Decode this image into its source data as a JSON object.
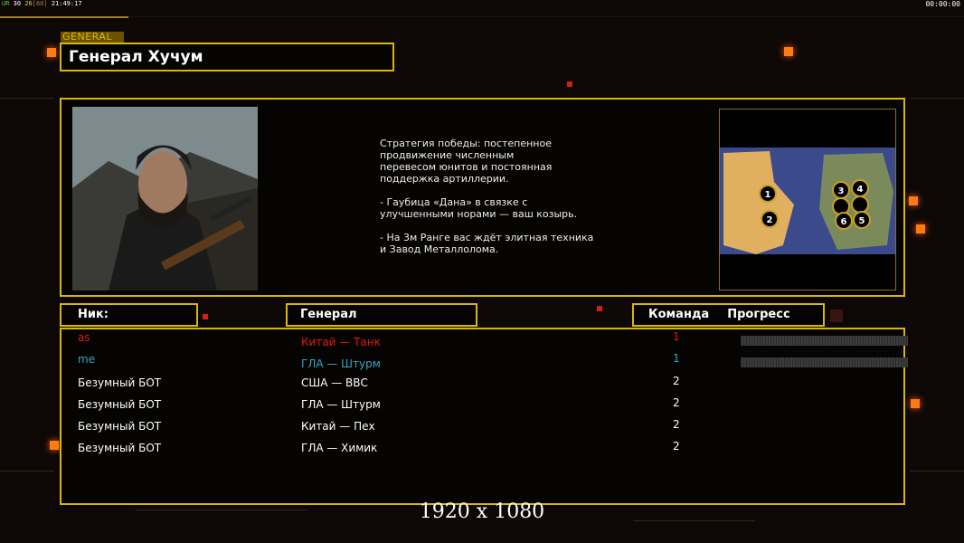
{
  "hud": {
    "fps_label": "UR",
    "values": [
      "30",
      "26",
      "[60]"
    ],
    "time": "21:49:17",
    "clock": "00:00:00"
  },
  "general": {
    "tag": "GENERAL",
    "title": "Генерал Хучум",
    "description": "Стратегия победы: постепенное\nпродвижение численным\nперевесом юнитов и постоянная\nподдержка артиллерии.\n\n- Гаубица «Дана» в связке с\nулучшенными норами — ваш козырь.\n\n- На 3м Ранге вас ждёт элитная техника\nи Завод Металлолома.",
    "map_slots": [
      "1",
      "2",
      "3",
      "4",
      "5",
      "6"
    ]
  },
  "headers": {
    "nick": "Ник:",
    "general": "Генерал",
    "team": "Команда",
    "progress": "Прогресс"
  },
  "players": [
    {
      "nick": "as",
      "general": "Китай — Танк",
      "team": "1",
      "color": "#e01a10",
      "progress": 0
    },
    {
      "nick": "me",
      "general": "ГЛА — Штурм",
      "team": "1",
      "color": "#30a8c8",
      "progress": 0
    },
    {
      "nick": "Безумный БОТ",
      "general": "США — ВВС",
      "team": "2",
      "color": "#ffffff"
    },
    {
      "nick": "Безумный БОТ",
      "general": "ГЛА — Штурм",
      "team": "2",
      "color": "#ffffff"
    },
    {
      "nick": "Безумный БОТ",
      "general": "Китай — Пех",
      "team": "2",
      "color": "#ffffff"
    },
    {
      "nick": "Безумный БОТ",
      "general": "ГЛА — Химик",
      "team": "2",
      "color": "#ffffff"
    }
  ],
  "resolution": "1920 x 1080",
  "colors": {
    "border": "#d8b800",
    "accent": "#ff7a10"
  }
}
